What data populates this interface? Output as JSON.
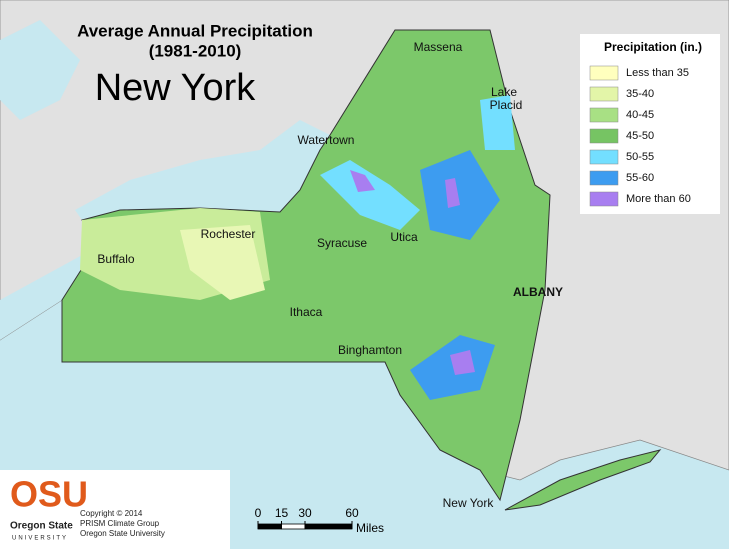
{
  "header": {
    "title": "Average Annual Precipitation",
    "period": "(1981-2010)",
    "state": "New York"
  },
  "legend": {
    "title": "Precipitation (in.)",
    "items": [
      {
        "label": "Less than 35",
        "color": "#ffffbe"
      },
      {
        "label": "35-40",
        "color": "#e3f5a8"
      },
      {
        "label": "40-45",
        "color": "#a8e084"
      },
      {
        "label": "45-50",
        "color": "#76c463"
      },
      {
        "label": "50-55",
        "color": "#73dfff"
      },
      {
        "label": "55-60",
        "color": "#3d9cf0"
      },
      {
        "label": "More than 60",
        "color": "#a87ef0"
      }
    ]
  },
  "cities": [
    "Massena",
    "Lake",
    "Placid",
    "Watertown",
    "Rochester",
    "Buffalo",
    "Syracuse",
    "Utica",
    "ALBANY",
    "Ithaca",
    "Binghamton",
    "New York"
  ],
  "logo": {
    "mark": "OSU",
    "name": "Oregon State",
    "sub": "UNIVERSITY"
  },
  "credits": [
    "Copyright © 2014",
    "PRISM Climate Group",
    "Oregon State University"
  ],
  "scale_bar": {
    "ticks": [
      0,
      15,
      30,
      60
    ],
    "unit": "Miles"
  }
}
